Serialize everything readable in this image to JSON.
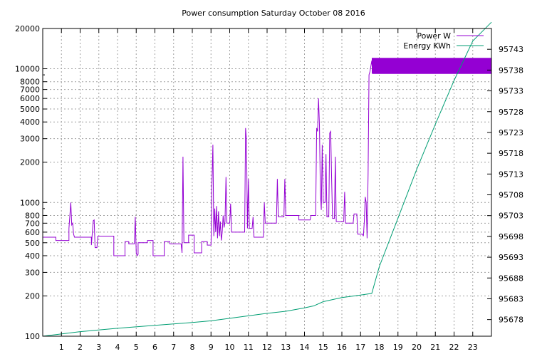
{
  "chart_data": {
    "type": "line",
    "title": "Power consumption Saturday October 08 2016",
    "x_axis": {
      "range": [
        0,
        24
      ],
      "ticks": [
        1,
        2,
        3,
        4,
        5,
        6,
        7,
        8,
        9,
        10,
        11,
        12,
        13,
        14,
        15,
        16,
        17,
        18,
        19,
        20,
        21,
        22,
        23
      ],
      "tick_labels": [
        "1",
        "2",
        "3",
        "4",
        "5",
        "6",
        "7",
        "8",
        "9",
        "10",
        "11",
        "12",
        "13",
        "14",
        "15",
        "16",
        "17",
        "18",
        "19",
        "20",
        "21",
        "22",
        "23"
      ]
    },
    "y_axis_left": {
      "scale": "log",
      "range": [
        100,
        20000
      ],
      "ticks": [
        100,
        200,
        300,
        400,
        500,
        600,
        700,
        800,
        1000,
        2000,
        3000,
        4000,
        5000,
        6000,
        7000,
        8000,
        10000,
        20000
      ],
      "tick_labels": [
        "100",
        "200",
        "300",
        "400",
        "500",
        "600",
        "700",
        "800",
        "1000",
        "2000",
        "3000",
        "4000",
        "5000",
        "6000",
        "7000",
        "8000",
        "10000",
        "20000"
      ]
    },
    "y_axis_right": {
      "scale": "linear",
      "range": [
        95674,
        95748
      ],
      "ticks": [
        95678,
        95683,
        95688,
        95693,
        95698,
        95703,
        95708,
        95713,
        95718,
        95723,
        95728,
        95733,
        95738,
        95743
      ],
      "tick_labels": [
        "95678",
        "95683",
        "95688",
        "95693",
        "95698",
        "95703",
        "95708",
        "95713",
        "95718",
        "95723",
        "95728",
        "95733",
        "95738",
        "95743"
      ]
    },
    "grid": true,
    "legend_position": "top-right",
    "series": [
      {
        "name": "Power W",
        "axis": "left",
        "color": "#9400d3",
        "points": [
          [
            0,
            550
          ],
          [
            0.7,
            550
          ],
          [
            0.7,
            520
          ],
          [
            1.4,
            520
          ],
          [
            1.4,
            640
          ],
          [
            1.5,
            1000
          ],
          [
            1.55,
            680
          ],
          [
            1.6,
            700
          ],
          [
            1.65,
            580
          ],
          [
            1.7,
            550
          ],
          [
            2.6,
            550
          ],
          [
            2.6,
            480
          ],
          [
            2.7,
            730
          ],
          [
            2.75,
            740
          ],
          [
            2.8,
            460
          ],
          [
            2.9,
            460
          ],
          [
            2.95,
            560
          ],
          [
            3.8,
            560
          ],
          [
            3.8,
            400
          ],
          [
            4.4,
            400
          ],
          [
            4.4,
            510
          ],
          [
            4.6,
            510
          ],
          [
            4.6,
            490
          ],
          [
            4.9,
            490
          ],
          [
            4.95,
            780
          ],
          [
            5.0,
            420
          ],
          [
            5.05,
            400
          ],
          [
            5.1,
            410
          ],
          [
            5.1,
            500
          ],
          [
            5.6,
            500
          ],
          [
            5.6,
            520
          ],
          [
            5.9,
            520
          ],
          [
            5.9,
            400
          ],
          [
            6.5,
            400
          ],
          [
            6.5,
            510
          ],
          [
            6.8,
            510
          ],
          [
            6.8,
            490
          ],
          [
            7.4,
            490
          ],
          [
            7.45,
            420
          ],
          [
            7.5,
            2200
          ],
          [
            7.55,
            500
          ],
          [
            7.8,
            500
          ],
          [
            7.8,
            570
          ],
          [
            8.1,
            570
          ],
          [
            8.1,
            420
          ],
          [
            8.5,
            420
          ],
          [
            8.5,
            510
          ],
          [
            8.8,
            510
          ],
          [
            8.8,
            480
          ],
          [
            9.0,
            480
          ],
          [
            9.05,
            1400
          ],
          [
            9.1,
            2700
          ],
          [
            9.15,
            560
          ],
          [
            9.2,
            900
          ],
          [
            9.25,
            600
          ],
          [
            9.3,
            940
          ],
          [
            9.35,
            540
          ],
          [
            9.4,
            860
          ],
          [
            9.45,
            560
          ],
          [
            9.5,
            720
          ],
          [
            9.55,
            520
          ],
          [
            9.6,
            600
          ],
          [
            9.65,
            800
          ],
          [
            9.7,
            650
          ],
          [
            9.75,
            720
          ],
          [
            9.8,
            1550
          ],
          [
            9.85,
            700
          ],
          [
            10.0,
            700
          ],
          [
            10.05,
            980
          ],
          [
            10.1,
            600
          ],
          [
            10.8,
            600
          ],
          [
            10.85,
            3600
          ],
          [
            10.9,
            2900
          ],
          [
            10.95,
            640
          ],
          [
            11.0,
            1500
          ],
          [
            11.05,
            640
          ],
          [
            11.2,
            640
          ],
          [
            11.25,
            780
          ],
          [
            11.3,
            550
          ],
          [
            11.8,
            550
          ],
          [
            11.85,
            1000
          ],
          [
            11.9,
            700
          ],
          [
            12.5,
            700
          ],
          [
            12.55,
            1500
          ],
          [
            12.6,
            780
          ],
          [
            12.9,
            780
          ],
          [
            12.95,
            1500
          ],
          [
            13.0,
            800
          ],
          [
            13.7,
            800
          ],
          [
            13.7,
            740
          ],
          [
            14.3,
            740
          ],
          [
            14.35,
            800
          ],
          [
            14.6,
            800
          ],
          [
            14.65,
            3600
          ],
          [
            14.7,
            3400
          ],
          [
            14.75,
            6000
          ],
          [
            14.8,
            3800
          ],
          [
            14.85,
            1200
          ],
          [
            14.9,
            880
          ],
          [
            14.95,
            2700
          ],
          [
            15.0,
            1000
          ],
          [
            15.1,
            1000
          ],
          [
            15.15,
            2300
          ],
          [
            15.2,
            780
          ],
          [
            15.3,
            780
          ],
          [
            15.35,
            3300
          ],
          [
            15.4,
            3400
          ],
          [
            15.45,
            1500
          ],
          [
            15.5,
            760
          ],
          [
            15.6,
            760
          ],
          [
            15.65,
            2200
          ],
          [
            15.7,
            720
          ],
          [
            16.1,
            720
          ],
          [
            16.15,
            1200
          ],
          [
            16.2,
            700
          ],
          [
            16.6,
            700
          ],
          [
            16.65,
            820
          ],
          [
            16.8,
            820
          ],
          [
            16.85,
            580
          ],
          [
            17.1,
            580
          ],
          [
            17.15,
            560
          ],
          [
            17.2,
            720
          ],
          [
            17.25,
            1100
          ],
          [
            17.3,
            1000
          ],
          [
            17.35,
            540
          ],
          [
            17.4,
            1600
          ],
          [
            17.45,
            9000
          ],
          [
            17.5,
            9500
          ],
          [
            17.6,
            11500
          ],
          [
            17.65,
            9200
          ],
          [
            24,
            9200
          ],
          [
            24,
            12000
          ],
          [
            17.6,
            12000
          ]
        ]
      },
      {
        "name": "Energy KWh",
        "axis": "right",
        "color": "#009e73",
        "points": [
          [
            0,
            95674.0
          ],
          [
            2,
            95675.1
          ],
          [
            4,
            95675.9
          ],
          [
            6,
            95676.6
          ],
          [
            8,
            95677.3
          ],
          [
            9,
            95677.7
          ],
          [
            10,
            95678.3
          ],
          [
            11,
            95678.9
          ],
          [
            12,
            95679.5
          ],
          [
            13,
            95680.0
          ],
          [
            14,
            95680.8
          ],
          [
            14.5,
            95681.3
          ],
          [
            15,
            95682.3
          ],
          [
            16,
            95683.3
          ],
          [
            17,
            95683.9
          ],
          [
            17.6,
            95684.3
          ],
          [
            18,
            95690.7
          ],
          [
            19,
            95702.4
          ],
          [
            20,
            95714.1
          ],
          [
            21,
            95725.0
          ],
          [
            22,
            95735.5
          ],
          [
            23,
            95745.0
          ],
          [
            24,
            95749.5
          ]
        ]
      }
    ]
  }
}
